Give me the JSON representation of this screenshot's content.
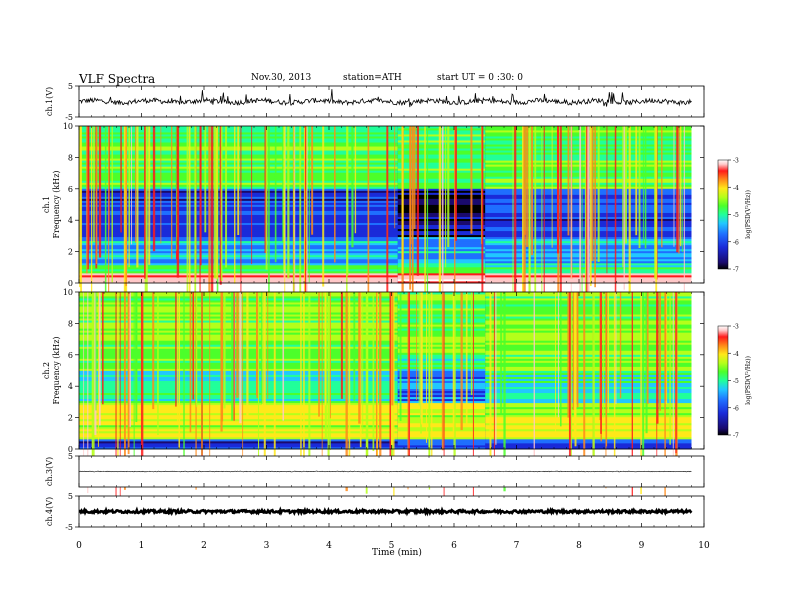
{
  "header": {
    "title": "VLF Spectra",
    "date": "Nov.30, 2013",
    "station": "station=ATH",
    "start": "start UT = 0 :30: 0"
  },
  "colors": {
    "spectrogram_ramp": [
      "#000000",
      "#1a0a6e",
      "#1a2bd9",
      "#1f6fff",
      "#21c8ff",
      "#21ff9a",
      "#4cff2a",
      "#b5ff1a",
      "#ffe81a",
      "#ff8a1a",
      "#ff1a1a",
      "#ffc8c8",
      "#ffffff"
    ]
  },
  "chart_data": [
    {
      "type": "line",
      "name": "ch1-waveform",
      "ylabel": "ch.1(V)",
      "ylim": [
        -5,
        5
      ],
      "yticks": [
        "5",
        "-5"
      ],
      "baseline": 0,
      "x_range": [
        0,
        9.8
      ]
    },
    {
      "type": "heatmap",
      "name": "ch1-spectrogram",
      "ylabel": "ch.1\nFrequency (kHz)",
      "ylim": [
        0,
        10
      ],
      "yticks": [
        "0",
        "2",
        "4",
        "6",
        "8",
        "10"
      ],
      "x_range": [
        0,
        9.8
      ],
      "colorbar": {
        "label": "log(PSD(V²/Hz))",
        "ticks": [
          "-3",
          "-4",
          "-5",
          "-6",
          "-7"
        ],
        "range": [
          -7,
          -3
        ]
      }
    },
    {
      "type": "heatmap",
      "name": "ch2-spectrogram",
      "ylabel": "ch.2\nFrequency (kHz)",
      "ylim": [
        0,
        10
      ],
      "yticks": [
        "0",
        "2",
        "4",
        "6",
        "8",
        "10"
      ],
      "x_range": [
        0,
        9.8
      ],
      "colorbar": {
        "label": "log(PSD(V²/Hz))",
        "ticks": [
          "-3",
          "-4",
          "-5",
          "-6",
          "-7"
        ],
        "range": [
          -7,
          -3
        ]
      }
    },
    {
      "type": "line",
      "name": "ch3-waveform",
      "ylabel": "ch.3(V)",
      "ylim": [
        -5,
        5
      ],
      "yticks": [
        "5"
      ],
      "baseline": 0,
      "x_range": [
        0,
        9.8
      ]
    },
    {
      "type": "line",
      "name": "ch4-waveform",
      "ylabel": "ch.4(V)",
      "ylim": [
        -5,
        5
      ],
      "yticks": [
        "5",
        "-5"
      ],
      "baseline": 0,
      "x_range": [
        0,
        9.8
      ]
    }
  ],
  "x_axis": {
    "label": "Time (min)",
    "ticks": [
      "0",
      "1",
      "2",
      "3",
      "4",
      "5",
      "6",
      "7",
      "8",
      "9",
      "10"
    ],
    "range": [
      0,
      10
    ]
  }
}
